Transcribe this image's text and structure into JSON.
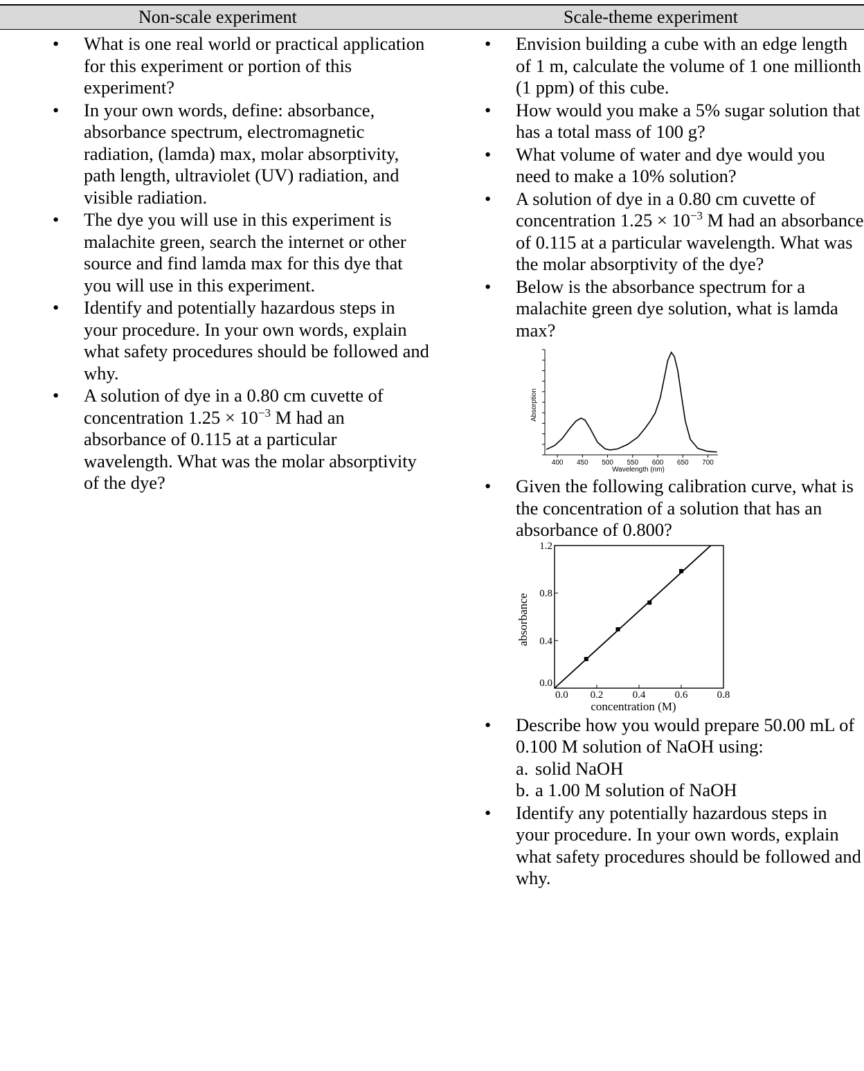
{
  "header": {
    "left_title": "Non-scale experiment",
    "right_title": "Scale-theme experiment"
  },
  "bullet_symbol": "•",
  "left_questions": [
    "What is one real world or practical application for this experiment or portion of this experiment?",
    "In your own words, define: absorbance, absorbance spectrum, electromagnetic radiation, (lamda) max, molar absorptivity, path length, ultraviolet (UV) radiation, and visible radiation.",
    "The dye you will use in this experiment is malachite green, search the internet or other source and find lamda max for this dye that you will use in this experiment.",
    "Identify and potentially hazardous steps in your procedure. In your own words, explain what safety procedures should be followed and why."
  ],
  "left_q5": {
    "part1": "A solution of dye in a 0.80 cm cuvette of concentration 1.25 × 10",
    "exp": "−3",
    "part2": " M had an absorbance of 0.115 at a particular wavelength. What was the molar absorptivity of the dye?"
  },
  "right_questions": {
    "q1": "Envision building a cube with an edge length of 1 m, calculate the volume of 1 one millionth (1 ppm) of this cube.",
    "q2": "How would you make a 5% sugar solution that has a total mass of 100 g?",
    "q3": "What volume of water and dye would you need to make a 10% solution?",
    "q4_part1": "A solution of dye in a 0.80 cm cuvette of concentration 1.25 × 10",
    "q4_exp": "−3",
    "q4_part2": " M had an absorbance of 0.115 at a particular wavelength. What was the molar absorptivity of the dye?",
    "q5": "Below is the absorbance spectrum for a malachite green dye solution, what is lamda max?",
    "q6": "Given the following calibration curve, what is the concentration of a solution that has an absorbance of 0.800?",
    "q7": "Describe how you would prepare 50.00 mL of 0.100 M solution of NaOH using:",
    "q7_a_label": "a.",
    "q7_a": "solid NaOH",
    "q7_b_label": "b.",
    "q7_b": "a 1.00 M solution of NaOH",
    "q8": "Identify any potentially hazardous steps in your procedure. In your own words, explain what safety procedures should be followed and why."
  },
  "chart_data": [
    {
      "type": "line",
      "xlabel": "Wavelength (nm)",
      "ylabel": "Absorption",
      "x_ticks": [
        "400",
        "450",
        "500",
        "550",
        "600",
        "650",
        "700"
      ],
      "xlim": [
        375,
        720
      ],
      "series": [
        {
          "x": [
            378,
            395,
            410,
            425,
            437,
            447,
            455,
            465,
            480,
            495,
            505,
            520,
            540,
            560,
            575,
            585,
            595,
            605,
            612,
            620,
            627,
            633,
            640,
            648,
            655,
            665,
            680,
            700,
            718
          ],
          "y": [
            0.04,
            0.08,
            0.15,
            0.25,
            0.32,
            0.35,
            0.33,
            0.25,
            0.11,
            0.045,
            0.035,
            0.045,
            0.09,
            0.16,
            0.25,
            0.32,
            0.4,
            0.55,
            0.72,
            0.92,
            1.0,
            0.96,
            0.82,
            0.55,
            0.32,
            0.14,
            0.05,
            0.02,
            0.015
          ]
        }
      ]
    },
    {
      "type": "scatter",
      "xlabel": "concentration (M)",
      "ylabel": "absorbance",
      "x_ticks": [
        "0.0",
        "0.2",
        "0.4",
        "0.6",
        "0.8"
      ],
      "y_ticks": [
        "0.0",
        "0.4",
        "0.8",
        "1.2"
      ],
      "xlim": [
        0,
        0.8
      ],
      "ylim": [
        0,
        1.2
      ],
      "points": [
        {
          "x": 0.15,
          "y": 0.245
        },
        {
          "x": 0.3,
          "y": 0.495
        },
        {
          "x": 0.45,
          "y": 0.72
        },
        {
          "x": 0.6,
          "y": 0.985
        }
      ],
      "fit_line": {
        "x0": 0,
        "y0": 0,
        "x1": 0.74,
        "y1": 1.2
      }
    }
  ]
}
